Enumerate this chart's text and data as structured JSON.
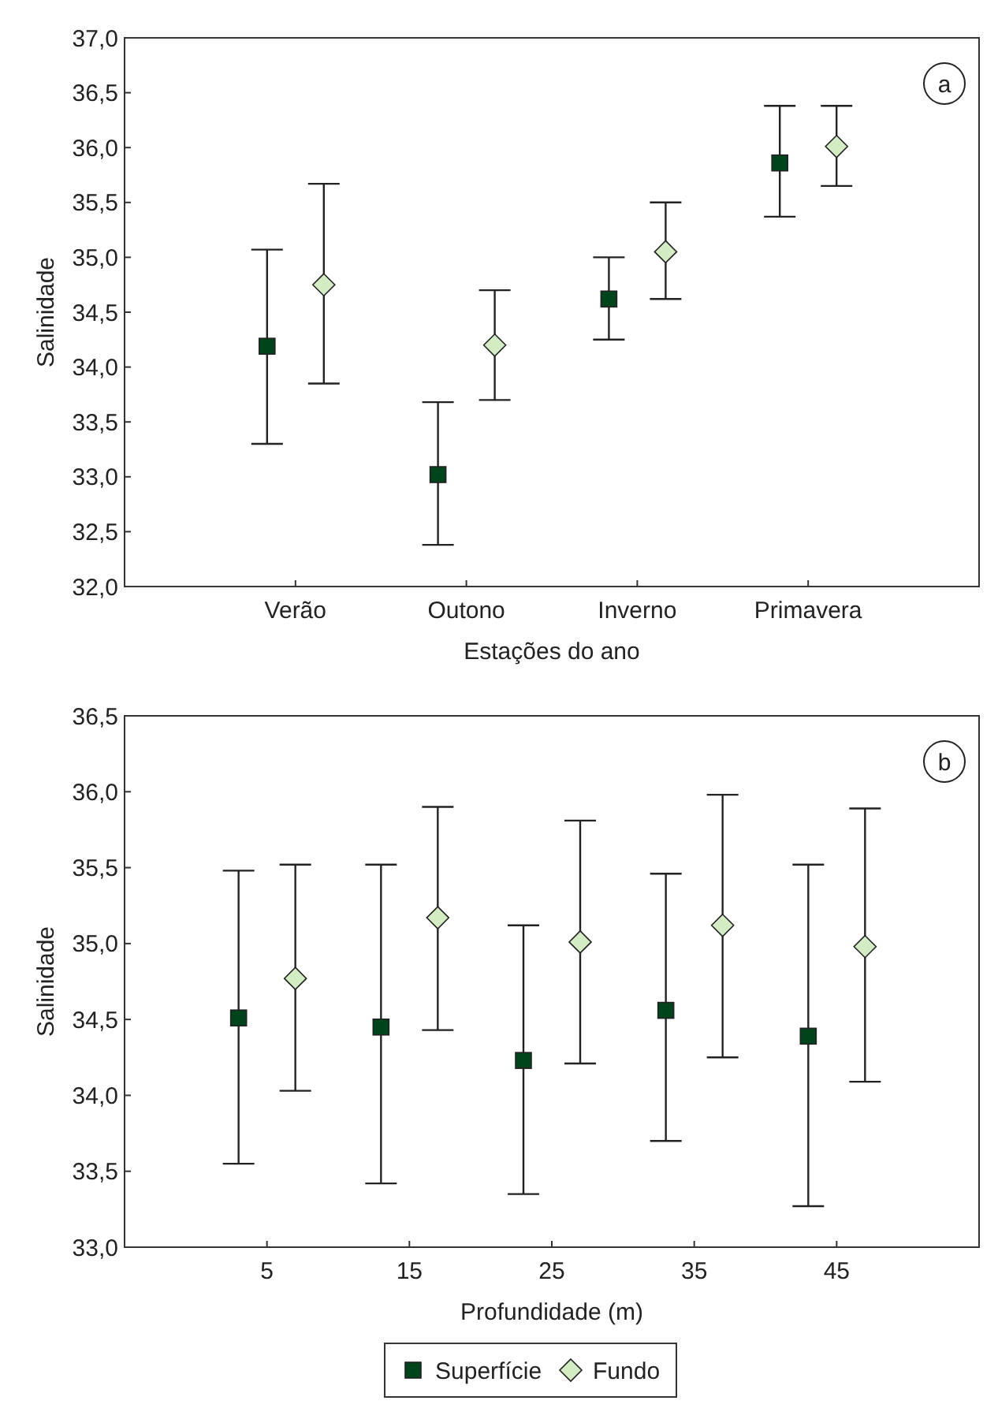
{
  "chart_data": [
    {
      "type": "scatter",
      "xlabel": "Estações do ano",
      "ylabel": "Salinidade",
      "categories": [
        "Verão",
        "Outono",
        "Inverno",
        "Primavera"
      ],
      "ylim": [
        32,
        37
      ],
      "yticks": [
        {
          "value": 32,
          "label": "32,0"
        },
        {
          "value": 32.5,
          "label": "32,5"
        },
        {
          "value": 33,
          "label": "33,0"
        },
        {
          "value": 33.5,
          "label": "33,5"
        },
        {
          "value": 34,
          "label": "34,0"
        },
        {
          "value": 34.5,
          "label": "34,5"
        },
        {
          "value": 35,
          "label": "35,0"
        },
        {
          "value": 35.5,
          "label": "35,5"
        },
        {
          "value": 36,
          "label": "36,0"
        },
        {
          "value": 36.5,
          "label": "36,5"
        },
        {
          "value": 37,
          "label": "37,0"
        }
      ],
      "grid": false,
      "legend": false,
      "annotations": [
        "a"
      ],
      "series": [
        {
          "color": "#00441b",
          "marker": "square",
          "values": [
            34.19,
            33.02,
            34.62,
            35.86
          ],
          "errors": [
            [
              33.3,
              35.07
            ],
            [
              32.38,
              33.68
            ],
            [
              34.25,
              35.0
            ],
            [
              35.37,
              36.38
            ]
          ]
        },
        {
          "color": "#d4ecc4",
          "marker": "diamond",
          "values": [
            34.75,
            34.2,
            35.05,
            36.01
          ],
          "errors": [
            [
              33.85,
              35.67
            ],
            [
              33.7,
              34.7
            ],
            [
              34.62,
              35.5
            ],
            [
              35.65,
              36.38
            ]
          ]
        }
      ]
    },
    {
      "type": "scatter",
      "xlabel": "Profundidade (m)",
      "ylabel": "Salinidade",
      "categories": [
        "5",
        "15",
        "25",
        "35",
        "45"
      ],
      "ylim": [
        33,
        36.5
      ],
      "yticks": [
        {
          "value": 33,
          "label": "33,0"
        },
        {
          "value": 33.5,
          "label": "33,5"
        },
        {
          "value": 34,
          "label": "34,0"
        },
        {
          "value": 34.5,
          "label": "34,5"
        },
        {
          "value": 35,
          "label": "35,0"
        },
        {
          "value": 35.5,
          "label": "35,5"
        },
        {
          "value": 36,
          "label": "36,0"
        },
        {
          "value": 36.5,
          "label": "36,5"
        }
      ],
      "grid": false,
      "legend": "bottom",
      "annotations": [
        "b"
      ],
      "series": [
        {
          "name": "Superfície",
          "color": "#00441b",
          "marker": "square",
          "values": [
            34.51,
            34.45,
            34.23,
            34.56,
            34.39
          ],
          "errors": [
            [
              33.55,
              35.48
            ],
            [
              33.42,
              35.52
            ],
            [
              33.35,
              35.12
            ],
            [
              33.7,
              35.46
            ],
            [
              33.27,
              35.52
            ]
          ]
        },
        {
          "name": "Fundo",
          "color": "#d4ecc4",
          "marker": "diamond",
          "values": [
            34.77,
            35.17,
            35.01,
            35.12,
            34.98
          ],
          "errors": [
            [
              34.03,
              35.52
            ],
            [
              34.43,
              35.9
            ],
            [
              34.21,
              35.81
            ],
            [
              34.25,
              35.98
            ],
            [
              34.09,
              35.89
            ]
          ]
        }
      ]
    }
  ]
}
